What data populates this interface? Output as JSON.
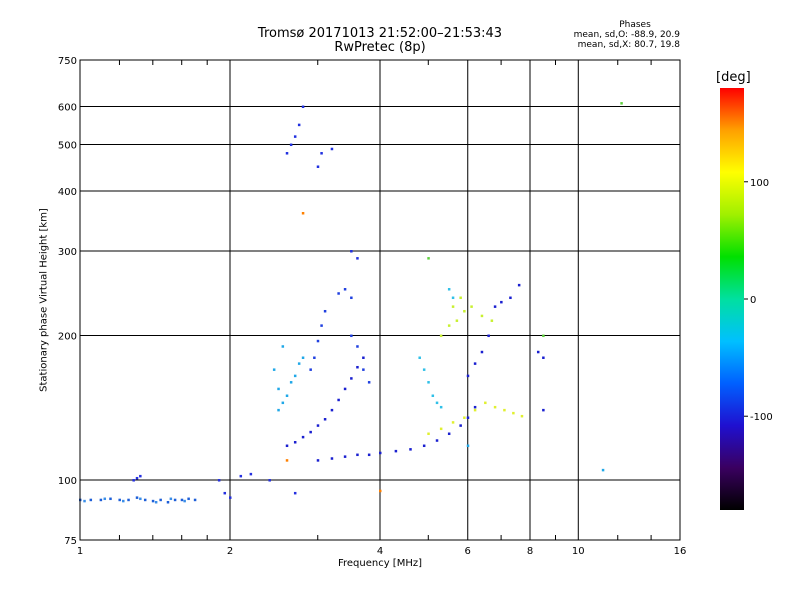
{
  "header": {
    "title_line1": "Tromsø 20171013 21:52:00–21:53:43",
    "title_line2": "RwPretec (8p)",
    "stats_title": "Phases",
    "stats_line1": "mean, sd,O: -88.9, 20.9",
    "stats_line2": "mean, sd,X:  80.7, 19.8"
  },
  "chart_data": {
    "type": "scatter",
    "xlabel": "Frequency [MHz]",
    "ylabel": "Stationary phase Virtual Height [km]",
    "xscale": "log",
    "yscale": "log",
    "xlim": [
      1,
      16
    ],
    "ylim": [
      75,
      750
    ],
    "x_ticks": [
      1,
      2,
      4,
      6,
      8,
      10,
      16
    ],
    "y_ticks": [
      75,
      100,
      200,
      300,
      400,
      500,
      600,
      750
    ],
    "grid": true,
    "colorbar": {
      "label": "[deg]",
      "range": [
        -180,
        180
      ],
      "ticks": [
        100,
        0,
        -100
      ],
      "colors": [
        "#000000",
        "#3a0060",
        "#1f10d0",
        "#0060ff",
        "#00c0ff",
        "#00e0a0",
        "#00e000",
        "#a0f000",
        "#ffff00",
        "#ffa000",
        "#ff0000"
      ]
    },
    "series": [
      {
        "color": "#1e5fd8",
        "points": [
          [
            1.0,
            91
          ],
          [
            1.05,
            91
          ],
          [
            1.1,
            91
          ],
          [
            1.15,
            91.5
          ],
          [
            1.2,
            91
          ],
          [
            1.25,
            91
          ],
          [
            1.3,
            92
          ],
          [
            1.35,
            91
          ],
          [
            1.4,
            90.5
          ],
          [
            1.45,
            91
          ],
          [
            1.5,
            90
          ],
          [
            1.55,
            91
          ],
          [
            1.6,
            91
          ],
          [
            1.65,
            91.5
          ],
          [
            1.7,
            91
          ]
        ]
      },
      {
        "color": "#3a8ee8",
        "points": [
          [
            1.02,
            90.5
          ],
          [
            1.12,
            91.5
          ],
          [
            1.22,
            90.5
          ],
          [
            1.32,
            91.5
          ],
          [
            1.42,
            90
          ],
          [
            1.52,
            91.5
          ],
          [
            1.62,
            90.5
          ]
        ]
      },
      {
        "color": "#2530e0",
        "points": [
          [
            1.28,
            100
          ],
          [
            1.3,
            101
          ],
          [
            1.32,
            102
          ],
          [
            1.9,
            100
          ],
          [
            1.95,
            94
          ],
          [
            2.0,
            92
          ],
          [
            2.1,
            102
          ],
          [
            2.2,
            103
          ],
          [
            2.4,
            100
          ],
          [
            2.7,
            94
          ]
        ]
      },
      {
        "color": "#1a20d0",
        "points": [
          [
            2.6,
            118
          ],
          [
            2.7,
            120
          ],
          [
            2.8,
            123
          ],
          [
            2.9,
            126
          ],
          [
            3.0,
            130
          ],
          [
            3.1,
            134
          ],
          [
            3.2,
            140
          ],
          [
            3.3,
            147
          ],
          [
            3.4,
            155
          ],
          [
            3.5,
            163
          ],
          [
            3.6,
            172
          ],
          [
            3.7,
            180
          ]
        ]
      },
      {
        "color": "#1a20d0",
        "points": [
          [
            3.0,
            110
          ],
          [
            3.2,
            111
          ],
          [
            3.4,
            112
          ],
          [
            3.6,
            113
          ],
          [
            3.8,
            113
          ],
          [
            4.0,
            114
          ],
          [
            4.3,
            115
          ],
          [
            4.6,
            116
          ],
          [
            4.9,
            118
          ],
          [
            5.2,
            121
          ],
          [
            5.5,
            125
          ],
          [
            5.8,
            130
          ],
          [
            6.0,
            135
          ],
          [
            6.2,
            142
          ]
        ]
      },
      {
        "color": "#2040e0",
        "points": [
          [
            2.9,
            170
          ],
          [
            2.95,
            180
          ],
          [
            3.0,
            195
          ],
          [
            3.05,
            210
          ],
          [
            3.1,
            225
          ],
          [
            3.3,
            245
          ],
          [
            3.4,
            250
          ],
          [
            3.5,
            240
          ],
          [
            3.5,
            200
          ],
          [
            3.6,
            190
          ],
          [
            3.7,
            170
          ],
          [
            3.8,
            160
          ]
        ]
      },
      {
        "color": "#20a8e8",
        "points": [
          [
            2.5,
            140
          ],
          [
            2.55,
            145
          ],
          [
            2.6,
            150
          ],
          [
            2.65,
            160
          ],
          [
            2.7,
            165
          ],
          [
            2.75,
            175
          ],
          [
            2.8,
            180
          ],
          [
            2.5,
            155
          ],
          [
            2.45,
            170
          ],
          [
            2.55,
            190
          ]
        ]
      },
      {
        "color": "#2030e0",
        "points": [
          [
            2.6,
            480
          ],
          [
            2.65,
            500
          ],
          [
            2.7,
            520
          ],
          [
            2.75,
            550
          ],
          [
            2.8,
            600
          ],
          [
            3.0,
            450
          ],
          [
            3.05,
            480
          ],
          [
            3.2,
            490
          ],
          [
            3.5,
            300
          ],
          [
            3.6,
            290
          ]
        ]
      },
      {
        "color": "#30c0e8",
        "points": [
          [
            4.8,
            180
          ],
          [
            4.9,
            170
          ],
          [
            5.0,
            160
          ],
          [
            5.1,
            150
          ],
          [
            5.2,
            145
          ],
          [
            5.3,
            142
          ],
          [
            5.5,
            250
          ],
          [
            5.6,
            240
          ]
        ]
      },
      {
        "color": "#c8f030",
        "points": [
          [
            5.3,
            200
          ],
          [
            5.5,
            210
          ],
          [
            5.7,
            215
          ],
          [
            5.9,
            225
          ],
          [
            6.1,
            230
          ],
          [
            6.4,
            220
          ],
          [
            6.7,
            215
          ],
          [
            5.8,
            240
          ],
          [
            5.6,
            230
          ]
        ]
      },
      {
        "color": "#e0f030",
        "points": [
          [
            5.0,
            125
          ],
          [
            5.3,
            128
          ],
          [
            5.6,
            132
          ],
          [
            5.9,
            135
          ],
          [
            6.2,
            140
          ],
          [
            6.5,
            145
          ],
          [
            6.8,
            142
          ],
          [
            7.1,
            140
          ],
          [
            7.4,
            138
          ],
          [
            7.7,
            136
          ]
        ]
      },
      {
        "color": "#ff8000",
        "points": [
          [
            2.8,
            360
          ],
          [
            4.0,
            95
          ],
          [
            2.6,
            110
          ]
        ]
      },
      {
        "color": "#60d040",
        "points": [
          [
            12.2,
            610
          ],
          [
            8.5,
            200
          ],
          [
            5.0,
            290
          ]
        ]
      },
      {
        "color": "#1a20d0",
        "points": [
          [
            6.0,
            165
          ],
          [
            6.2,
            175
          ],
          [
            6.4,
            185
          ],
          [
            6.6,
            200
          ],
          [
            6.8,
            230
          ],
          [
            7.0,
            235
          ],
          [
            7.3,
            240
          ],
          [
            7.6,
            255
          ],
          [
            8.3,
            185
          ],
          [
            8.5,
            180
          ],
          [
            8.5,
            140
          ]
        ]
      },
      {
        "color": "#20a8e8",
        "points": [
          [
            11.2,
            105
          ],
          [
            6.0,
            118
          ]
        ]
      }
    ]
  }
}
